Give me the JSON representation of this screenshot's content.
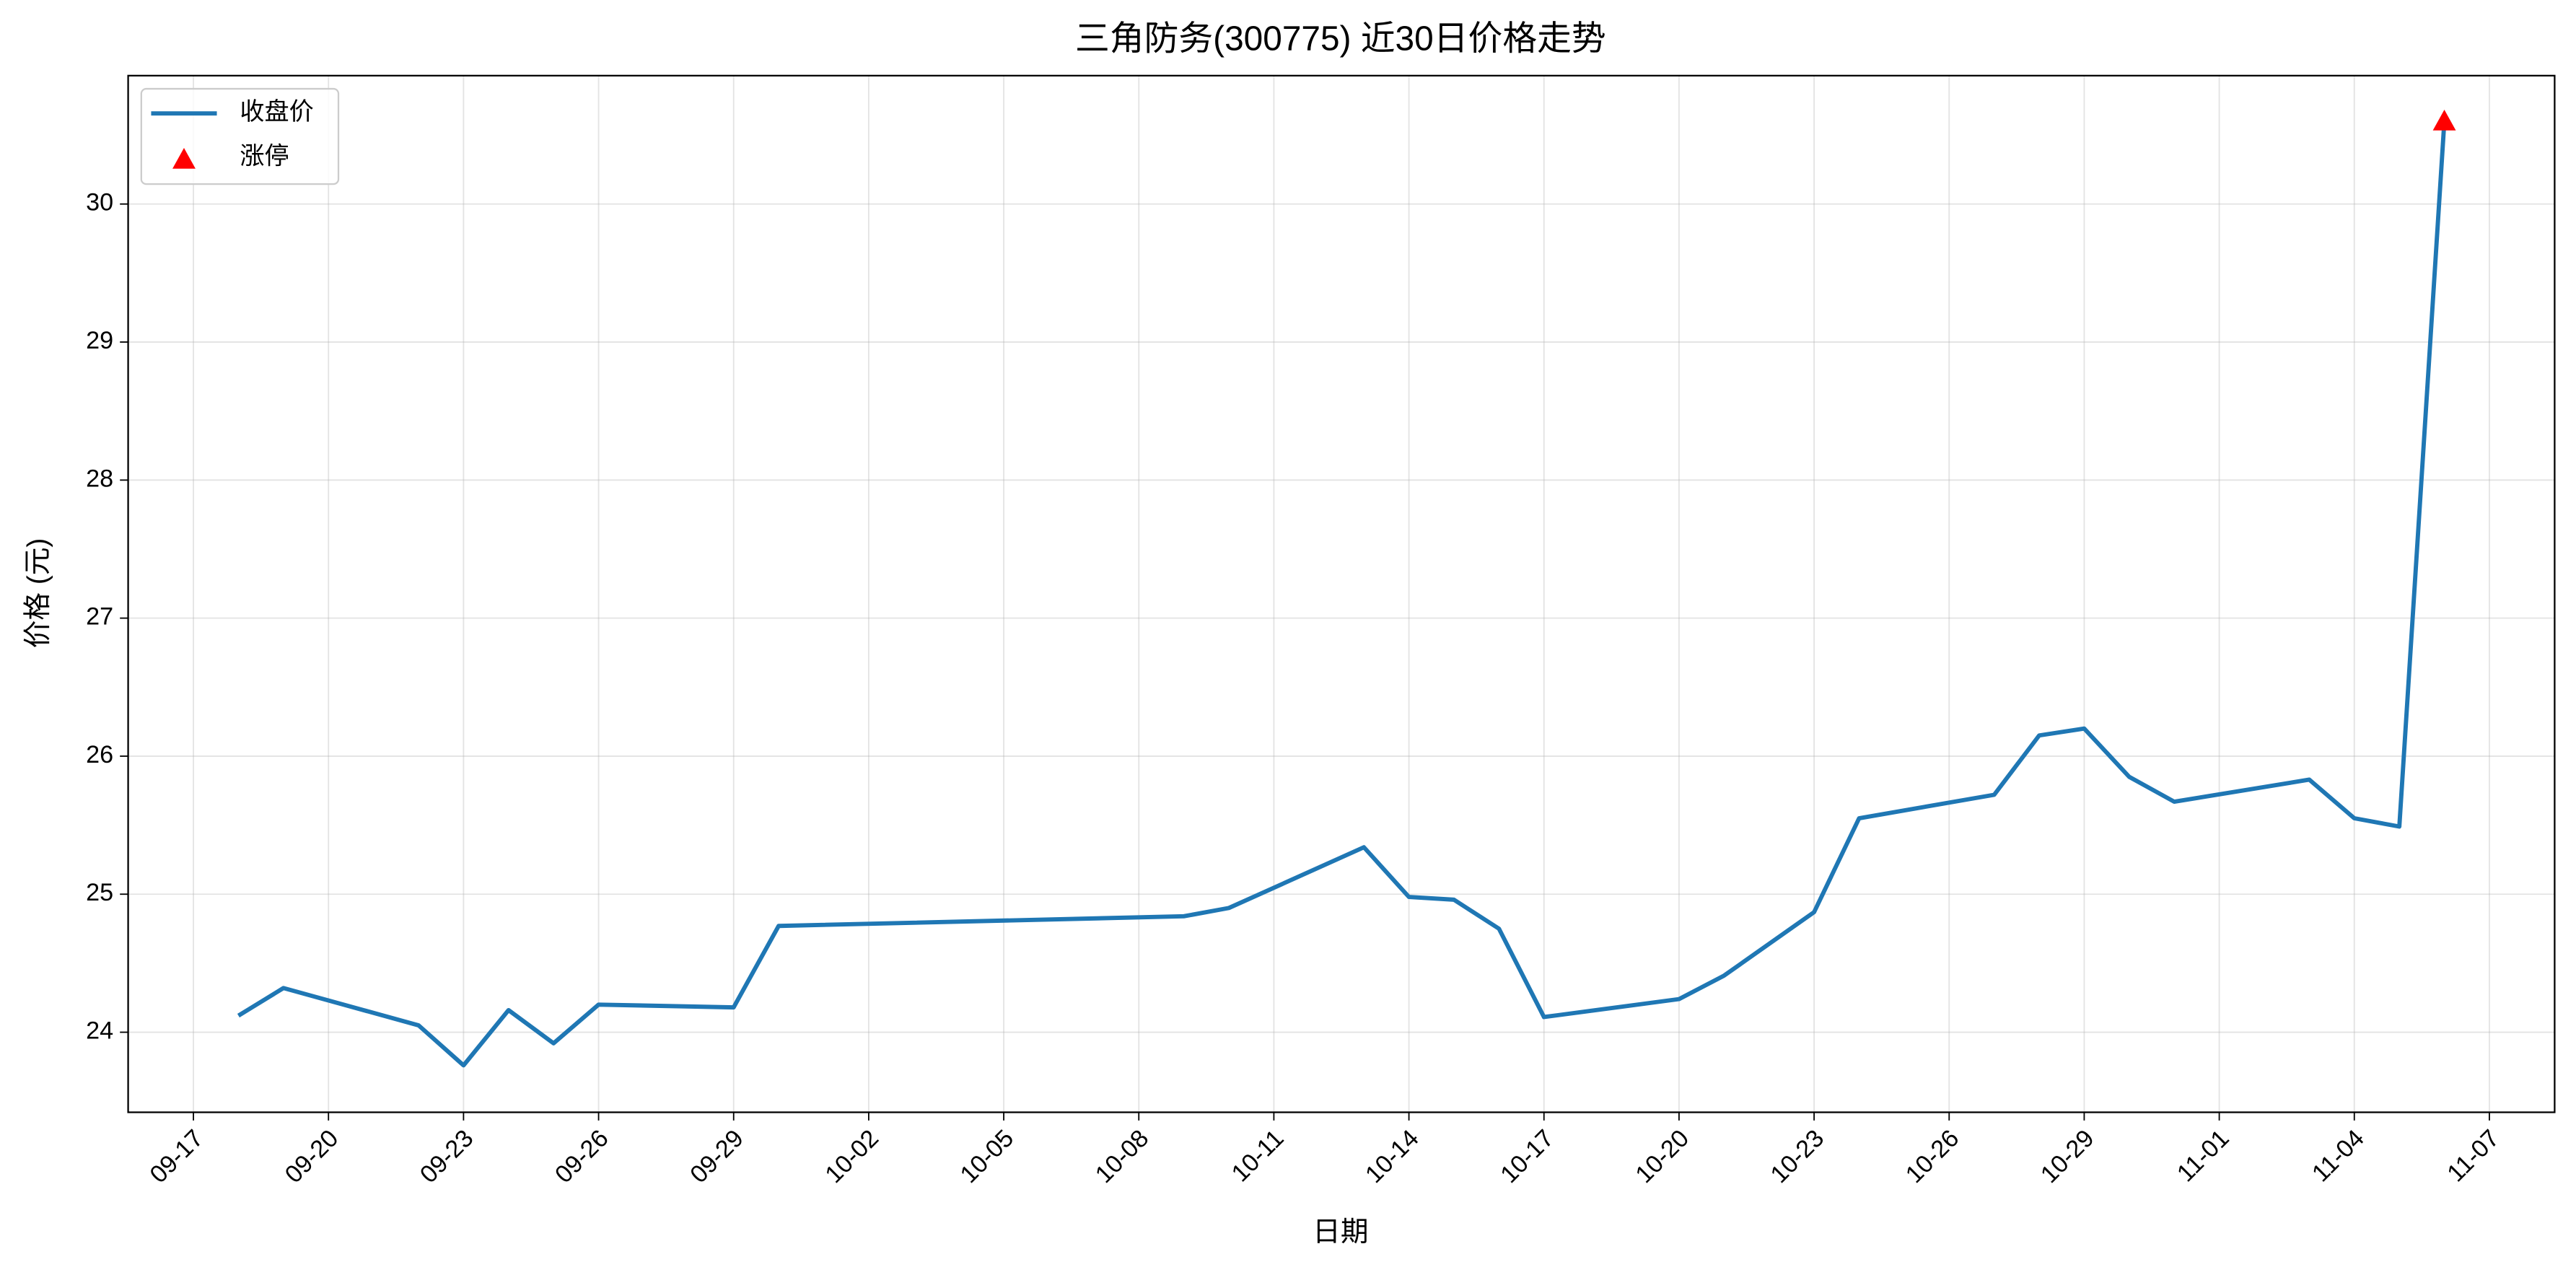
{
  "chart_data": {
    "type": "line",
    "title": "三角防务(300775) 近30日价格走势",
    "xlabel": "日期",
    "ylabel": "价格 (元)",
    "x": [
      "09-18",
      "09-19",
      "09-22",
      "09-23",
      "09-24",
      "09-25",
      "09-26",
      "09-29",
      "09-30",
      "10-09",
      "10-10",
      "10-13",
      "10-14",
      "10-15",
      "10-16",
      "10-17",
      "10-20",
      "10-21",
      "10-23",
      "10-24",
      "10-27",
      "10-28",
      "10-29",
      "10-30",
      "10-31",
      "11-03",
      "11-04",
      "11-05",
      "11-06"
    ],
    "series": [
      {
        "name": "收盘价",
        "color": "#1f77b4",
        "values": [
          24.12,
          24.32,
          24.05,
          23.76,
          24.16,
          23.92,
          24.2,
          24.18,
          24.77,
          24.84,
          24.9,
          25.34,
          24.98,
          24.96,
          24.75,
          24.11,
          24.24,
          24.41,
          24.87,
          25.55,
          25.72,
          26.15,
          26.2,
          25.85,
          25.67,
          25.83,
          25.55,
          25.49,
          30.6
        ]
      },
      {
        "name": "涨停",
        "type": "scatter",
        "color": "#ff0000",
        "x": [
          "11-06"
        ],
        "values": [
          30.6
        ]
      }
    ],
    "ylim": [
      23.42,
      30.93
    ],
    "yticks": [
      24,
      25,
      26,
      27,
      28,
      29,
      30
    ],
    "xticks": [
      "09-17",
      "09-20",
      "09-23",
      "09-26",
      "09-29",
      "10-02",
      "10-05",
      "10-08",
      "10-11",
      "10-14",
      "10-17",
      "10-20",
      "10-23",
      "10-26",
      "10-29",
      "11-01",
      "11-04",
      "11-07"
    ],
    "grid": true,
    "legend": "upper-left"
  }
}
